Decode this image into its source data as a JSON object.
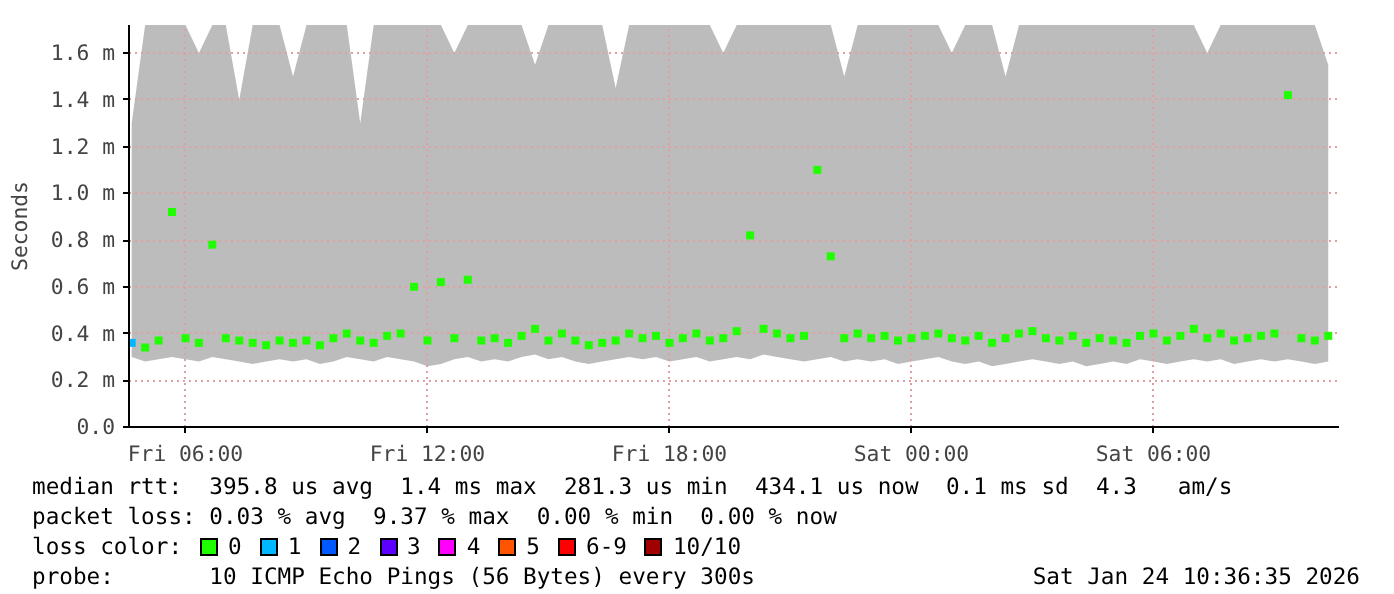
{
  "chart_data": {
    "type": "scatter",
    "ylabel": "Seconds",
    "legend_title": "loss color:",
    "legend": "bottom",
    "grid": true,
    "marker": "square",
    "xlim": [
      "2026-01-23T04:36",
      "2026-01-24T10:36"
    ],
    "xticks": [
      {
        "value": "2026-01-23T06:00",
        "label": "Fri 06:00"
      },
      {
        "value": "2026-01-23T12:00",
        "label": "Fri 12:00"
      },
      {
        "value": "2026-01-23T18:00",
        "label": "Fri 18:00"
      },
      {
        "value": "2026-01-24T00:00",
        "label": "Sat 00:00"
      },
      {
        "value": "2026-01-24T06:00",
        "label": "Sat 06:00"
      }
    ],
    "ylim": [
      0,
      1.72
    ],
    "yticks": [
      {
        "value": 0,
        "label": "0.0"
      },
      {
        "value": 0.2,
        "label": "0.2 m"
      },
      {
        "value": 0.4,
        "label": "0.4 m"
      },
      {
        "value": 0.6,
        "label": "0.6 m"
      },
      {
        "value": 0.8,
        "label": "0.8 m"
      },
      {
        "value": 1.0,
        "label": "1.0 m"
      },
      {
        "value": 1.2,
        "label": "1.2 m"
      },
      {
        "value": 1.4,
        "label": "1.4 m"
      },
      {
        "value": 1.6,
        "label": "1.6 m"
      }
    ],
    "x": [
      "2026-01-23T04:40",
      "2026-01-23T05:00",
      "2026-01-23T05:20",
      "2026-01-23T05:40",
      "2026-01-23T06:00",
      "2026-01-23T06:20",
      "2026-01-23T06:40",
      "2026-01-23T07:00",
      "2026-01-23T07:20",
      "2026-01-23T07:40",
      "2026-01-23T08:00",
      "2026-01-23T08:20",
      "2026-01-23T08:40",
      "2026-01-23T09:00",
      "2026-01-23T09:20",
      "2026-01-23T09:40",
      "2026-01-23T10:00",
      "2026-01-23T10:20",
      "2026-01-23T10:40",
      "2026-01-23T11:00",
      "2026-01-23T11:20",
      "2026-01-23T11:40",
      "2026-01-23T12:00",
      "2026-01-23T12:20",
      "2026-01-23T12:40",
      "2026-01-23T13:00",
      "2026-01-23T13:20",
      "2026-01-23T13:40",
      "2026-01-23T14:00",
      "2026-01-23T14:20",
      "2026-01-23T14:40",
      "2026-01-23T15:00",
      "2026-01-23T15:20",
      "2026-01-23T15:40",
      "2026-01-23T16:00",
      "2026-01-23T16:20",
      "2026-01-23T16:40",
      "2026-01-23T17:00",
      "2026-01-23T17:20",
      "2026-01-23T17:40",
      "2026-01-23T18:00",
      "2026-01-23T18:20",
      "2026-01-23T18:40",
      "2026-01-23T19:00",
      "2026-01-23T19:20",
      "2026-01-23T19:40",
      "2026-01-23T20:00",
      "2026-01-23T20:20",
      "2026-01-23T20:40",
      "2026-01-23T21:00",
      "2026-01-23T21:20",
      "2026-01-23T21:40",
      "2026-01-23T22:00",
      "2026-01-23T22:20",
      "2026-01-23T22:40",
      "2026-01-23T23:00",
      "2026-01-23T23:20",
      "2026-01-23T23:40",
      "2026-01-24T00:00",
      "2026-01-24T00:20",
      "2026-01-24T00:40",
      "2026-01-24T01:00",
      "2026-01-24T01:20",
      "2026-01-24T01:40",
      "2026-01-24T02:00",
      "2026-01-24T02:20",
      "2026-01-24T02:40",
      "2026-01-24T03:00",
      "2026-01-24T03:20",
      "2026-01-24T03:40",
      "2026-01-24T04:00",
      "2026-01-24T04:20",
      "2026-01-24T04:40",
      "2026-01-24T05:00",
      "2026-01-24T05:20",
      "2026-01-24T05:40",
      "2026-01-24T06:00",
      "2026-01-24T06:20",
      "2026-01-24T06:40",
      "2026-01-24T07:00",
      "2026-01-24T07:20",
      "2026-01-24T07:40",
      "2026-01-24T08:00",
      "2026-01-24T08:20",
      "2026-01-24T08:40",
      "2026-01-24T09:00",
      "2026-01-24T09:20",
      "2026-01-24T09:40",
      "2026-01-24T10:00",
      "2026-01-24T10:20"
    ],
    "series": [
      {
        "name": "0",
        "color": "#20ff00",
        "values": [
          null,
          0.34,
          0.37,
          0.92,
          0.38,
          0.36,
          0.78,
          0.38,
          0.37,
          0.36,
          0.35,
          0.37,
          0.36,
          0.37,
          0.35,
          0.38,
          0.4,
          0.37,
          0.36,
          0.39,
          0.4,
          0.6,
          0.37,
          0.62,
          0.38,
          0.63,
          0.37,
          0.38,
          0.36,
          0.39,
          0.42,
          0.37,
          0.4,
          0.37,
          0.35,
          0.36,
          0.37,
          0.4,
          0.38,
          0.39,
          0.36,
          0.38,
          0.4,
          0.37,
          0.38,
          0.41,
          0.82,
          0.42,
          0.4,
          0.38,
          0.39,
          1.1,
          0.73,
          0.38,
          0.4,
          0.38,
          0.39,
          0.37,
          0.38,
          0.39,
          0.4,
          0.38,
          0.37,
          0.39,
          0.36,
          0.38,
          0.4,
          0.41,
          0.38,
          0.37,
          0.39,
          0.36,
          0.38,
          0.37,
          0.36,
          0.39,
          0.4,
          0.37,
          0.39,
          0.42,
          0.38,
          0.4,
          0.37,
          0.38,
          0.39,
          0.4,
          1.42,
          0.38,
          0.37,
          0.39
        ],
        "lower": [
          0.3,
          0.28,
          0.29,
          0.3,
          0.29,
          0.28,
          0.3,
          0.29,
          0.28,
          0.27,
          0.28,
          0.29,
          0.28,
          0.29,
          0.27,
          0.28,
          0.3,
          0.29,
          0.28,
          0.3,
          0.29,
          0.28,
          0.26,
          0.27,
          0.29,
          0.3,
          0.28,
          0.29,
          0.28,
          0.3,
          0.31,
          0.29,
          0.3,
          0.28,
          0.27,
          0.28,
          0.29,
          0.3,
          0.29,
          0.3,
          0.28,
          0.29,
          0.3,
          0.28,
          0.29,
          0.3,
          0.29,
          0.31,
          0.3,
          0.29,
          0.28,
          0.29,
          0.3,
          0.28,
          0.29,
          0.28,
          0.29,
          0.27,
          0.28,
          0.29,
          0.3,
          0.28,
          0.27,
          0.28,
          0.26,
          0.27,
          0.28,
          0.29,
          0.28,
          0.27,
          0.28,
          0.26,
          0.27,
          0.28,
          0.27,
          0.29,
          0.28,
          0.27,
          0.28,
          0.29,
          0.28,
          0.29,
          0.27,
          0.28,
          0.29,
          0.28,
          0.29,
          0.28,
          0.27,
          0.28
        ],
        "upper": [
          1.3,
          1.72,
          1.72,
          1.72,
          1.72,
          1.6,
          1.72,
          1.72,
          1.4,
          1.72,
          1.72,
          1.72,
          1.5,
          1.72,
          1.72,
          1.72,
          1.72,
          1.3,
          1.72,
          1.72,
          1.72,
          1.72,
          1.72,
          1.72,
          1.6,
          1.72,
          1.72,
          1.72,
          1.72,
          1.72,
          1.55,
          1.72,
          1.72,
          1.72,
          1.72,
          1.72,
          1.45,
          1.72,
          1.72,
          1.72,
          1.72,
          1.72,
          1.72,
          1.72,
          1.6,
          1.72,
          1.72,
          1.72,
          1.72,
          1.72,
          1.72,
          1.72,
          1.72,
          1.5,
          1.72,
          1.72,
          1.72,
          1.72,
          1.72,
          1.72,
          1.72,
          1.6,
          1.72,
          1.72,
          1.72,
          1.5,
          1.72,
          1.72,
          1.72,
          1.72,
          1.72,
          1.72,
          1.72,
          1.72,
          1.72,
          1.72,
          1.72,
          1.72,
          1.72,
          1.72,
          1.6,
          1.72,
          1.72,
          1.72,
          1.72,
          1.72,
          1.72,
          1.72,
          1.72,
          1.55
        ]
      },
      {
        "name": "1",
        "color": "#00b8ff",
        "values": [
          0.36,
          null,
          null,
          null,
          null,
          null,
          null,
          null,
          null,
          null,
          null,
          null,
          null,
          null,
          null,
          null,
          null,
          null,
          null,
          null,
          null,
          null,
          null,
          null,
          null,
          null,
          null,
          null,
          null,
          null,
          null,
          null,
          null,
          null,
          null,
          null,
          null,
          null,
          null,
          null,
          null,
          null,
          null,
          null,
          null,
          null,
          null,
          null,
          null,
          null,
          null,
          null,
          null,
          null,
          null,
          null,
          null,
          null,
          null,
          null,
          null,
          null,
          null,
          null,
          null,
          null,
          null,
          null,
          null,
          null,
          null,
          null,
          null,
          null,
          null,
          null,
          null,
          null,
          null,
          null,
          null,
          null,
          null,
          null,
          null,
          null,
          null,
          null,
          null,
          null
        ]
      },
      {
        "name": "2",
        "color": "#0059ff",
        "values": [
          null,
          null,
          null,
          null,
          null,
          null,
          null,
          null,
          null,
          null,
          null,
          null,
          null,
          null,
          null,
          null,
          null,
          null,
          null,
          null,
          null,
          null,
          null,
          null,
          null,
          null,
          null,
          null,
          null,
          null,
          null,
          null,
          null,
          null,
          null,
          null,
          null,
          null,
          null,
          null,
          null,
          null,
          null,
          null,
          null,
          null,
          null,
          null,
          null,
          null,
          null,
          null,
          null,
          null,
          null,
          null,
          null,
          null,
          null,
          null,
          null,
          null,
          null,
          null,
          null,
          null,
          null,
          null,
          null,
          null,
          null,
          null,
          null,
          null,
          null,
          null,
          null,
          null,
          null,
          null,
          null,
          null,
          null,
          null,
          null,
          null,
          null,
          null,
          null,
          null
        ]
      },
      {
        "name": "3",
        "color": "#5e00ff",
        "values": [
          null,
          null,
          null,
          null,
          null,
          null,
          null,
          null,
          null,
          null,
          null,
          null,
          null,
          null,
          null,
          null,
          null,
          null,
          null,
          null,
          null,
          null,
          null,
          null,
          null,
          null,
          null,
          null,
          null,
          null,
          null,
          null,
          null,
          null,
          null,
          null,
          null,
          null,
          null,
          null,
          null,
          null,
          null,
          null,
          null,
          null,
          null,
          null,
          null,
          null,
          null,
          null,
          null,
          null,
          null,
          null,
          null,
          null,
          null,
          null,
          null,
          null,
          null,
          null,
          null,
          null,
          null,
          null,
          null,
          null,
          null,
          null,
          null,
          null,
          null,
          null,
          null,
          null,
          null,
          null,
          null,
          null,
          null,
          null,
          null,
          null,
          null,
          null,
          null,
          null
        ]
      },
      {
        "name": "4",
        "color": "#ff00ff",
        "values": [
          null,
          null,
          null,
          null,
          null,
          null,
          null,
          null,
          null,
          null,
          null,
          null,
          null,
          null,
          null,
          null,
          null,
          null,
          null,
          null,
          null,
          null,
          null,
          null,
          null,
          null,
          null,
          null,
          null,
          null,
          null,
          null,
          null,
          null,
          null,
          null,
          null,
          null,
          null,
          null,
          null,
          null,
          null,
          null,
          null,
          null,
          null,
          null,
          null,
          null,
          null,
          null,
          null,
          null,
          null,
          null,
          null,
          null,
          null,
          null,
          null,
          null,
          null,
          null,
          null,
          null,
          null,
          null,
          null,
          null,
          null,
          null,
          null,
          null,
          null,
          null,
          null,
          null,
          null,
          null,
          null,
          null,
          null,
          null,
          null,
          null,
          null,
          null,
          null,
          null
        ]
      },
      {
        "name": "5",
        "color": "#ff5500",
        "values": [
          null,
          null,
          null,
          null,
          null,
          null,
          null,
          null,
          null,
          null,
          null,
          null,
          null,
          null,
          null,
          null,
          null,
          null,
          null,
          null,
          null,
          null,
          null,
          null,
          null,
          null,
          null,
          null,
          null,
          null,
          null,
          null,
          null,
          null,
          null,
          null,
          null,
          null,
          null,
          null,
          null,
          null,
          null,
          null,
          null,
          null,
          null,
          null,
          null,
          null,
          null,
          null,
          null,
          null,
          null,
          null,
          null,
          null,
          null,
          null,
          null,
          null,
          null,
          null,
          null,
          null,
          null,
          null,
          null,
          null,
          null,
          null,
          null,
          null,
          null,
          null,
          null,
          null,
          null,
          null,
          null,
          null,
          null,
          null,
          null,
          null,
          null,
          null,
          null,
          null
        ]
      },
      {
        "name": "6-9",
        "color": "#ff0000",
        "values": [
          null,
          null,
          null,
          null,
          null,
          null,
          null,
          null,
          null,
          null,
          null,
          null,
          null,
          null,
          null,
          null,
          null,
          null,
          null,
          null,
          null,
          null,
          null,
          null,
          null,
          null,
          null,
          null,
          null,
          null,
          null,
          null,
          null,
          null,
          null,
          null,
          null,
          null,
          null,
          null,
          null,
          null,
          null,
          null,
          null,
          null,
          null,
          null,
          null,
          null,
          null,
          null,
          null,
          null,
          null,
          null,
          null,
          null,
          null,
          null,
          null,
          null,
          null,
          null,
          null,
          null,
          null,
          null,
          null,
          null,
          null,
          null,
          null,
          null,
          null,
          null,
          null,
          null,
          null,
          null,
          null,
          null,
          null,
          null,
          null,
          null,
          null,
          null,
          null,
          null
        ]
      },
      {
        "name": "10/10",
        "color": "#a10000",
        "values": [
          null,
          null,
          null,
          null,
          null,
          null,
          null,
          null,
          null,
          null,
          null,
          null,
          null,
          null,
          null,
          null,
          null,
          null,
          null,
          null,
          null,
          null,
          null,
          null,
          null,
          null,
          null,
          null,
          null,
          null,
          null,
          null,
          null,
          null,
          null,
          null,
          null,
          null,
          null,
          null,
          null,
          null,
          null,
          null,
          null,
          null,
          null,
          null,
          null,
          null,
          null,
          null,
          null,
          null,
          null,
          null,
          null,
          null,
          null,
          null,
          null,
          null,
          null,
          null,
          null,
          null,
          null,
          null,
          null,
          null,
          null,
          null,
          null,
          null,
          null,
          null,
          null,
          null,
          null,
          null,
          null,
          null,
          null,
          null,
          null,
          null,
          null,
          null,
          null,
          null
        ]
      }
    ],
    "annotations": [
      "median rtt:  395.8 us avg  1.4 ms max  281.3 us min  434.1 us now  0.1 ms sd  4.3   am/s",
      "packet loss: 0.03 % avg  9.37 % max  0.00 % min  0.00 % now",
      "probe:       10 ICMP Echo Pings (56 Bytes) every 300s",
      "Sat Jan 24 10:36:35 2026"
    ]
  }
}
